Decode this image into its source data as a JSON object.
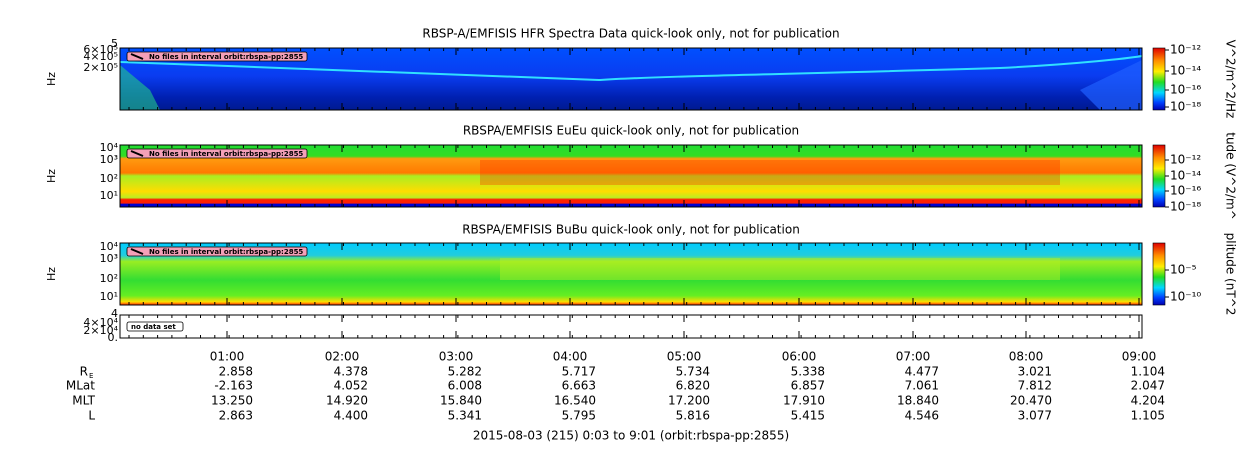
{
  "panels": [
    {
      "title": "RBSP-A/EMFISIS  HFR Spectra Data quick-look only, not for publication",
      "y_label": "Hz",
      "y_ticks": [
        "5",
        "6×10⁵",
        "4×10⁵",
        "2×10⁵"
      ],
      "colorbar_label": "V^2/m^2/Hz",
      "colorbar_ticks": [
        "10⁻¹²",
        "10⁻¹⁴",
        "10⁻¹⁶",
        "10⁻¹⁸"
      ],
      "notice": "No files in interval orbit:rbspa-pp:2855"
    },
    {
      "title": "RBSPA/EMFISIS  EuEu quick-look only, not for publication",
      "y_label": "Hz",
      "y_ticks": [
        "10⁴",
        "10³",
        "10²",
        "10¹"
      ],
      "colorbar_label": "tude (V^2/m^",
      "colorbar_ticks": [
        "10⁻¹²",
        "10⁻¹⁴",
        "10⁻¹⁶",
        "10⁻¹⁸"
      ],
      "notice": "No files in interval orbit:rbspa-pp:2855"
    },
    {
      "title": "RBSPA/EMFISIS  BuBu quick-look only, not for publication",
      "y_label": "Hz",
      "y_ticks": [
        "10⁴",
        "10³",
        "10²",
        "10¹"
      ],
      "colorbar_label": "plitude (nT^2",
      "colorbar_ticks": [
        "10⁻⁵",
        "10⁻¹⁰"
      ],
      "notice": "No files in interval orbit:rbspa-pp:2855"
    }
  ],
  "empty_panel": {
    "y_ticks": [
      "4",
      "4×10⁴",
      "2×10⁴",
      "0."
    ],
    "notice": "no data set"
  },
  "x_ticks": [
    "01:00",
    "02:00",
    "03:00",
    "04:00",
    "05:00",
    "06:00",
    "07:00",
    "08:00",
    "09:00"
  ],
  "ephemeris": [
    {
      "label": "R",
      "label_sub": "E",
      "values": [
        "2.858",
        "4.378",
        "5.282",
        "5.717",
        "5.734",
        "5.338",
        "4.477",
        "3.021",
        "1.104"
      ]
    },
    {
      "label": "MLat",
      "values": [
        "-2.163",
        "4.052",
        "6.008",
        "6.663",
        "6.820",
        "6.857",
        "7.061",
        "7.812",
        "2.047"
      ]
    },
    {
      "label": "MLT",
      "values": [
        "13.250",
        "14.920",
        "15.840",
        "16.540",
        "17.200",
        "17.910",
        "18.840",
        "20.470",
        "4.204"
      ]
    },
    {
      "label": "L",
      "values": [
        "2.863",
        "4.400",
        "5.341",
        "5.795",
        "5.816",
        "5.415",
        "4.546",
        "3.077",
        "1.105"
      ]
    }
  ],
  "footer": "2015-08-03 (215) 0:03 to 9:01 (orbit:rbspa-pp:2855)"
}
